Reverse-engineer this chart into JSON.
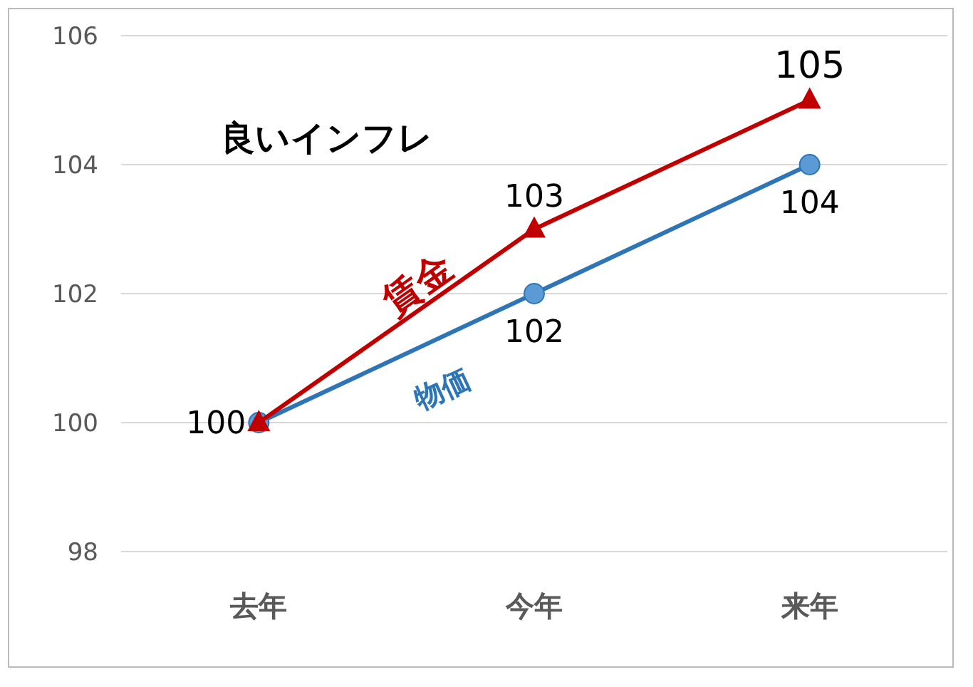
{
  "chart_data": {
    "type": "line",
    "title": "良いインフレ",
    "categories": [
      "去年",
      "今年",
      "来年"
    ],
    "ylim": [
      98,
      106
    ],
    "yticks": [
      98,
      100,
      102,
      104,
      106
    ],
    "grid": "y",
    "series": [
      {
        "name": "物価",
        "color": "#2e75b6",
        "marker": "circle",
        "values": [
          100,
          102,
          104
        ],
        "value_labels": [
          "100",
          "102",
          "104"
        ]
      },
      {
        "name": "賃金",
        "color": "#c00000",
        "marker": "triangle",
        "values": [
          100,
          103,
          105
        ],
        "value_labels": [
          null,
          "103",
          "105"
        ]
      }
    ]
  }
}
